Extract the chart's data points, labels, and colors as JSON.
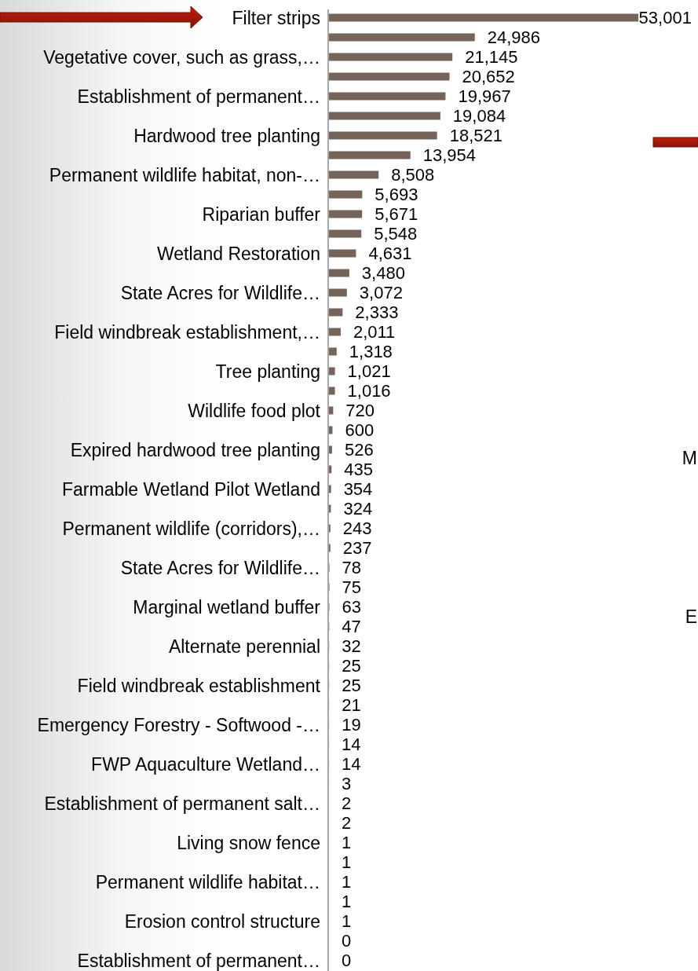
{
  "chart_data": {
    "type": "bar",
    "orientation": "horizontal",
    "categories": [
      "Filter strips",
      null,
      "Vegetative cover, such as grass,…",
      null,
      "Establishment of permanent…",
      null,
      "Hardwood tree planting",
      null,
      "Permanent wildlife habitat, non-…",
      null,
      "Riparian buffer",
      null,
      "Wetland Restoration",
      null,
      "State Acres for Wildlife…",
      null,
      "Field windbreak establishment,…",
      null,
      "Tree planting",
      null,
      "Wildlife food plot",
      null,
      "Expired hardwood tree planting",
      null,
      "Farmable Wetland Pilot Wetland",
      null,
      "Permanent wildlife (corridors),…",
      null,
      "State Acres for Wildlife…",
      null,
      "Marginal wetland buffer",
      null,
      "Alternate perennial",
      null,
      "Field windbreak establishment",
      null,
      "Emergency Forestry - Softwood -…",
      null,
      "FWP Aquaculture Wetland…",
      null,
      "Establishment of permanent salt…",
      null,
      "Living snow fence",
      null,
      "Permanent wildlife habitat…",
      null,
      "Erosion control structure",
      null,
      "Establishment of permanent…"
    ],
    "values": [
      53001,
      24986,
      21145,
      20652,
      19967,
      19084,
      18521,
      13954,
      8508,
      5693,
      5671,
      5548,
      4631,
      3480,
      3072,
      2333,
      2011,
      1318,
      1021,
      1016,
      720,
      600,
      526,
      435,
      354,
      324,
      243,
      237,
      78,
      75,
      63,
      47,
      32,
      25,
      25,
      21,
      19,
      14,
      14,
      3,
      2,
      2,
      1,
      1,
      1,
      1,
      1,
      0,
      0
    ],
    "value_labels": [
      "53,001",
      "24,986",
      "21,145",
      "20,652",
      "19,967",
      "19,084",
      "18,521",
      "13,954",
      "8,508",
      "5,693",
      "5,671",
      "5,548",
      "4,631",
      "3,480",
      "3,072",
      "2,333",
      "2,011",
      "1,318",
      "1,021",
      "1,016",
      "720",
      "600",
      "526",
      "435",
      "354",
      "324",
      "243",
      "237",
      "78",
      "75",
      "63",
      "47",
      "32",
      "25",
      "25",
      "21",
      "19",
      "14",
      "14",
      "3",
      "2",
      "2",
      "1",
      "1",
      "1",
      "1",
      "1",
      "0",
      "0"
    ],
    "color": "#76645a",
    "tick_labels": "y",
    "annotations": [
      "M",
      "E"
    ]
  }
}
